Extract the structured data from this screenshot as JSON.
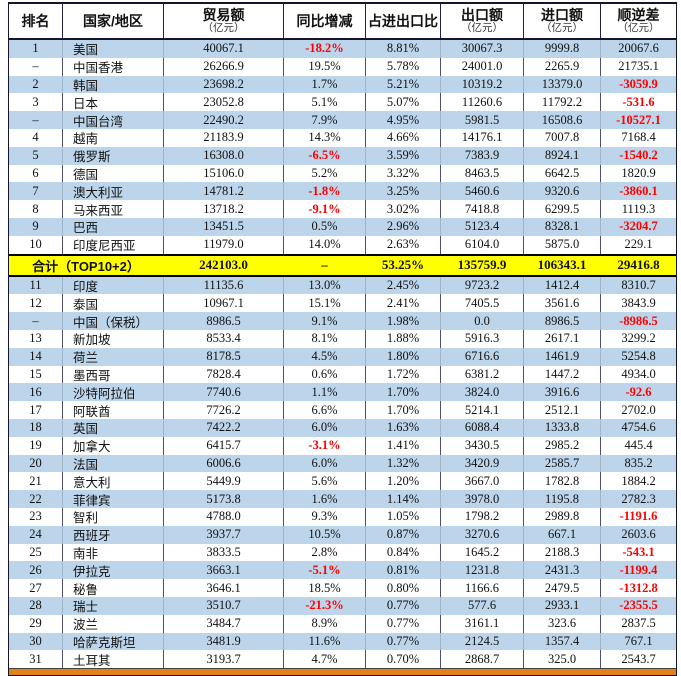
{
  "colors": {
    "row_blue": "#BDD5EA",
    "summary_yellow": "#FFFF00",
    "negative_red": "#FF0000",
    "border_dark": "#15152E",
    "cutoff_orange": "#E2821A"
  },
  "chart_data": {
    "type": "table",
    "columns": [
      {
        "key": "rank",
        "label": "排名",
        "sub": ""
      },
      {
        "key": "country",
        "label": "国家/地区",
        "sub": ""
      },
      {
        "key": "trade",
        "label": "贸易额",
        "sub": "（亿元）"
      },
      {
        "key": "yoy",
        "label": "同比增减",
        "sub": ""
      },
      {
        "key": "share",
        "label": "占进出口比",
        "sub": ""
      },
      {
        "key": "export",
        "label": "出口额",
        "sub": "（亿元）"
      },
      {
        "key": "import",
        "label": "进口额",
        "sub": "（亿元）"
      },
      {
        "key": "balance",
        "label": "顺逆差",
        "sub": "（亿元）"
      }
    ],
    "rows": [
      {
        "rank": "1",
        "country": "美国",
        "trade": "40067.1",
        "yoy": "-18.2%",
        "share": "8.81%",
        "export": "30067.3",
        "import": "9999.8",
        "balance": "20067.6"
      },
      {
        "rank": "–",
        "country": "中国香港",
        "trade": "26266.9",
        "yoy": "19.5%",
        "share": "5.78%",
        "export": "24001.0",
        "import": "2265.9",
        "balance": "21735.1"
      },
      {
        "rank": "2",
        "country": "韩国",
        "trade": "23698.2",
        "yoy": "1.7%",
        "share": "5.21%",
        "export": "10319.2",
        "import": "13379.0",
        "balance": "-3059.9"
      },
      {
        "rank": "3",
        "country": "日本",
        "trade": "23052.8",
        "yoy": "5.1%",
        "share": "5.07%",
        "export": "11260.6",
        "import": "11792.2",
        "balance": "-531.6"
      },
      {
        "rank": "–",
        "country": "中国台湾",
        "trade": "22490.2",
        "yoy": "7.9%",
        "share": "4.95%",
        "export": "5981.5",
        "import": "16508.6",
        "balance": "-10527.1"
      },
      {
        "rank": "4",
        "country": "越南",
        "trade": "21183.9",
        "yoy": "14.3%",
        "share": "4.66%",
        "export": "14176.1",
        "import": "7007.8",
        "balance": "7168.4"
      },
      {
        "rank": "5",
        "country": "俄罗斯",
        "trade": "16308.0",
        "yoy": "-6.5%",
        "share": "3.59%",
        "export": "7383.9",
        "import": "8924.1",
        "balance": "-1540.2"
      },
      {
        "rank": "6",
        "country": "德国",
        "trade": "15106.0",
        "yoy": "5.2%",
        "share": "3.32%",
        "export": "8463.5",
        "import": "6642.5",
        "balance": "1820.9"
      },
      {
        "rank": "7",
        "country": "澳大利亚",
        "trade": "14781.2",
        "yoy": "-1.8%",
        "share": "3.25%",
        "export": "5460.6",
        "import": "9320.6",
        "balance": "-3860.1"
      },
      {
        "rank": "8",
        "country": "马来西亚",
        "trade": "13718.2",
        "yoy": "-9.1%",
        "share": "3.02%",
        "export": "7418.8",
        "import": "6299.5",
        "balance": "1119.3"
      },
      {
        "rank": "9",
        "country": "巴西",
        "trade": "13451.5",
        "yoy": "0.5%",
        "share": "2.96%",
        "export": "5123.4",
        "import": "8328.1",
        "balance": "-3204.7"
      },
      {
        "rank": "10",
        "country": "印度尼西亚",
        "trade": "11979.0",
        "yoy": "14.0%",
        "share": "2.63%",
        "export": "6104.0",
        "import": "5875.0",
        "balance": "229.1"
      },
      {
        "type": "summary",
        "label": "合计（TOP10+2）",
        "trade": "242103.0",
        "yoy": "–",
        "share": "53.25%",
        "export": "135759.9",
        "import": "106343.1",
        "balance": "29416.8"
      },
      {
        "rank": "11",
        "country": "印度",
        "trade": "11135.6",
        "yoy": "13.0%",
        "share": "2.45%",
        "export": "9723.2",
        "import": "1412.4",
        "balance": "8310.7"
      },
      {
        "rank": "12",
        "country": "泰国",
        "trade": "10967.1",
        "yoy": "15.1%",
        "share": "2.41%",
        "export": "7405.5",
        "import": "3561.6",
        "balance": "3843.9"
      },
      {
        "rank": "–",
        "country": "中国（保税）",
        "trade": "8986.5",
        "yoy": "9.1%",
        "share": "1.98%",
        "export": "0.0",
        "import": "8986.5",
        "balance": "-8986.5"
      },
      {
        "rank": "13",
        "country": "新加坡",
        "trade": "8533.4",
        "yoy": "8.1%",
        "share": "1.88%",
        "export": "5916.3",
        "import": "2617.1",
        "balance": "3299.2"
      },
      {
        "rank": "14",
        "country": "荷兰",
        "trade": "8178.5",
        "yoy": "4.5%",
        "share": "1.80%",
        "export": "6716.6",
        "import": "1461.9",
        "balance": "5254.8"
      },
      {
        "rank": "15",
        "country": "墨西哥",
        "trade": "7828.4",
        "yoy": "0.6%",
        "share": "1.72%",
        "export": "6381.2",
        "import": "1447.2",
        "balance": "4934.0"
      },
      {
        "rank": "16",
        "country": "沙特阿拉伯",
        "trade": "7740.6",
        "yoy": "1.1%",
        "share": "1.70%",
        "export": "3824.0",
        "import": "3916.6",
        "balance": "-92.6"
      },
      {
        "rank": "17",
        "country": "阿联酋",
        "trade": "7726.2",
        "yoy": "6.6%",
        "share": "1.70%",
        "export": "5214.1",
        "import": "2512.1",
        "balance": "2702.0"
      },
      {
        "rank": "18",
        "country": "英国",
        "trade": "7422.2",
        "yoy": "6.0%",
        "share": "1.63%",
        "export": "6088.4",
        "import": "1333.8",
        "balance": "4754.6"
      },
      {
        "rank": "19",
        "country": "加拿大",
        "trade": "6415.7",
        "yoy": "-3.1%",
        "share": "1.41%",
        "export": "3430.5",
        "import": "2985.2",
        "balance": "445.4"
      },
      {
        "rank": "20",
        "country": "法国",
        "trade": "6006.6",
        "yoy": "6.0%",
        "share": "1.32%",
        "export": "3420.9",
        "import": "2585.7",
        "balance": "835.2"
      },
      {
        "rank": "21",
        "country": "意大利",
        "trade": "5449.9",
        "yoy": "5.6%",
        "share": "1.20%",
        "export": "3667.0",
        "import": "1782.8",
        "balance": "1884.2"
      },
      {
        "rank": "22",
        "country": "菲律宾",
        "trade": "5173.8",
        "yoy": "1.6%",
        "share": "1.14%",
        "export": "3978.0",
        "import": "1195.8",
        "balance": "2782.3"
      },
      {
        "rank": "23",
        "country": "智利",
        "trade": "4788.0",
        "yoy": "9.3%",
        "share": "1.05%",
        "export": "1798.2",
        "import": "2989.8",
        "balance": "-1191.6"
      },
      {
        "rank": "24",
        "country": "西班牙",
        "trade": "3937.7",
        "yoy": "10.5%",
        "share": "0.87%",
        "export": "3270.6",
        "import": "667.1",
        "balance": "2603.6"
      },
      {
        "rank": "25",
        "country": "南非",
        "trade": "3833.5",
        "yoy": "2.8%",
        "share": "0.84%",
        "export": "1645.2",
        "import": "2188.3",
        "balance": "-543.1"
      },
      {
        "rank": "26",
        "country": "伊拉克",
        "trade": "3663.1",
        "yoy": "-5.1%",
        "share": "0.81%",
        "export": "1231.8",
        "import": "2431.3",
        "balance": "-1199.4"
      },
      {
        "rank": "27",
        "country": "秘鲁",
        "trade": "3646.1",
        "yoy": "18.5%",
        "share": "0.80%",
        "export": "1166.6",
        "import": "2479.5",
        "balance": "-1312.8"
      },
      {
        "rank": "28",
        "country": "瑞士",
        "trade": "3510.7",
        "yoy": "-21.3%",
        "share": "0.77%",
        "export": "577.6",
        "import": "2933.1",
        "balance": "-2355.5"
      },
      {
        "rank": "29",
        "country": "波兰",
        "trade": "3484.7",
        "yoy": "8.9%",
        "share": "0.77%",
        "export": "3161.1",
        "import": "323.6",
        "balance": "2837.5"
      },
      {
        "rank": "30",
        "country": "哈萨克斯坦",
        "trade": "3481.9",
        "yoy": "11.6%",
        "share": "0.77%",
        "export": "2124.5",
        "import": "1357.4",
        "balance": "767.1"
      },
      {
        "rank": "31",
        "country": "土耳其",
        "trade": "3193.7",
        "yoy": "4.7%",
        "share": "0.70%",
        "export": "2868.7",
        "import": "325.0",
        "balance": "2543.7"
      }
    ]
  }
}
